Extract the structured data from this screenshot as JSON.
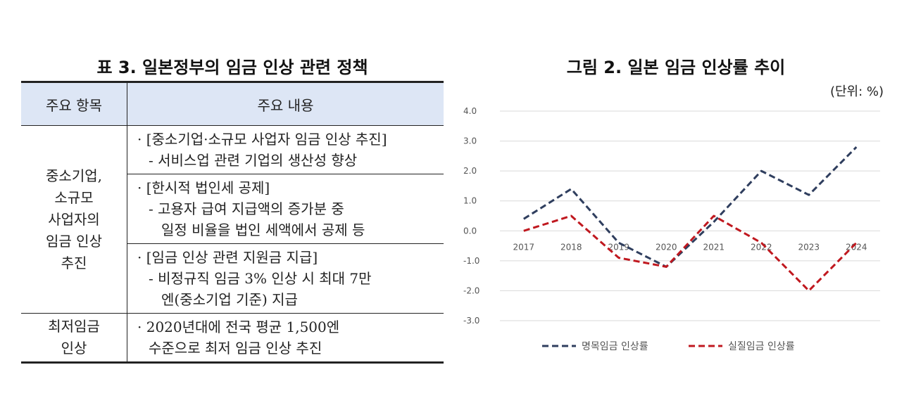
{
  "table": {
    "title": "표 3. 일본정부의 임금 인상 관련 정책",
    "headers": [
      "주요 항목",
      "주요 내용"
    ],
    "item1": [
      "중소기업,",
      "소규모",
      "사업자의",
      "임금 인상",
      "추진"
    ],
    "item2": [
      "최저임금",
      "인상"
    ],
    "row1": [
      "· [중소기업·소규모 사업자 임금 인상 추진]",
      "- 서비스업 관련 기업의 생산성 향상"
    ],
    "row2": [
      "· [한시적 법인세 공제]",
      "- 고용자 급여 지급액의 증가분 중",
      "일정 비율을 법인 세액에서 공제 등"
    ],
    "row3": [
      "· [임금 인상 관련 지원금 지급]",
      "- 비정규직 임금 3% 인상 시 최대 7만",
      "엔(중소기업 기준) 지급"
    ],
    "row4": [
      "· 2020년대에 전국 평균 1,500엔",
      "수준으로 최저 임금 인상 추진"
    ]
  },
  "chart": {
    "title": "그림 2. 일본 임금 인상률 추이",
    "unit": "(단위: %)"
  },
  "chart_data": {
    "type": "line",
    "title": "그림 2. 일본 임금 인상률 추이",
    "unit": "(단위: %)",
    "x": [
      "2017",
      "2018",
      "2019",
      "2020",
      "2021",
      "2022",
      "2023",
      "2024"
    ],
    "y_ticks": [
      "4.0",
      "3.0",
      "2.0",
      "1.0",
      "0.0",
      "-1.0",
      "-2.0",
      "-3.0"
    ],
    "ylim": [
      -3.0,
      4.0
    ],
    "grid": true,
    "legend_position": "bottom",
    "series": [
      {
        "name": "명목임금 인상률",
        "color": "#2f3e5e",
        "style": "dashed",
        "values": [
          0.4,
          1.4,
          -0.4,
          -1.2,
          0.3,
          2.0,
          1.2,
          2.8
        ]
      },
      {
        "name": "실질임금 인상률",
        "color": "#c0181f",
        "style": "dashed",
        "values": [
          0.0,
          0.5,
          -0.9,
          -1.2,
          0.5,
          -0.4,
          -2.0,
          -0.4
        ]
      }
    ]
  }
}
